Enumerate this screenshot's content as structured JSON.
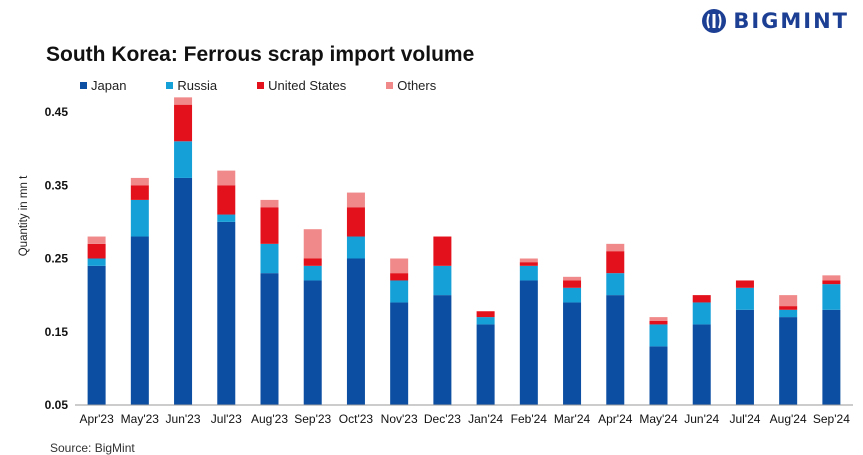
{
  "brand": {
    "name": "BIGMINT",
    "color": "#1c3f94"
  },
  "source": "Source: BigMint",
  "chart_data": {
    "type": "bar",
    "stacked": true,
    "title": "South Korea: Ferrous scrap import volume",
    "xlabel": "",
    "ylabel": "Quantity in mn t",
    "ylim": [
      0.05,
      0.45
    ],
    "yticks": [
      "0.05",
      "0.15",
      "0.25",
      "0.35",
      "0.45"
    ],
    "grid": false,
    "legend_position": "top",
    "categories": [
      "Apr'23",
      "May'23",
      "Jun'23",
      "Jul'23",
      "Aug'23",
      "Sep'23",
      "Oct'23",
      "Nov'23",
      "Dec'23",
      "Jan'24",
      "Feb'24",
      "Mar'24",
      "Apr'24",
      "May'24",
      "Jun'24",
      "Jul'24",
      "Aug'24",
      "Sep'24"
    ],
    "series": [
      {
        "name": "Japan",
        "color": "#0b4ea2",
        "values": [
          0.19,
          0.23,
          0.31,
          0.25,
          0.18,
          0.17,
          0.2,
          0.14,
          0.15,
          0.11,
          0.17,
          0.14,
          0.15,
          0.08,
          0.11,
          0.13,
          0.12,
          0.13
        ]
      },
      {
        "name": "Russia",
        "color": "#15a0d8",
        "values": [
          0.01,
          0.05,
          0.05,
          0.01,
          0.04,
          0.02,
          0.03,
          0.03,
          0.04,
          0.01,
          0.02,
          0.02,
          0.03,
          0.03,
          0.03,
          0.03,
          0.01,
          0.035
        ]
      },
      {
        "name": "United States",
        "color": "#e3111b",
        "values": [
          0.02,
          0.02,
          0.05,
          0.04,
          0.05,
          0.01,
          0.04,
          0.01,
          0.04,
          0.008,
          0.005,
          0.01,
          0.03,
          0.005,
          0.01,
          0.01,
          0.005,
          0.005
        ]
      },
      {
        "name": "Others",
        "color": "#f08a8a",
        "values": [
          0.01,
          0.01,
          0.01,
          0.02,
          0.01,
          0.04,
          0.02,
          0.02,
          0.0,
          0.0,
          0.005,
          0.005,
          0.01,
          0.005,
          0.0,
          0.0,
          0.015,
          0.007
        ]
      }
    ]
  }
}
